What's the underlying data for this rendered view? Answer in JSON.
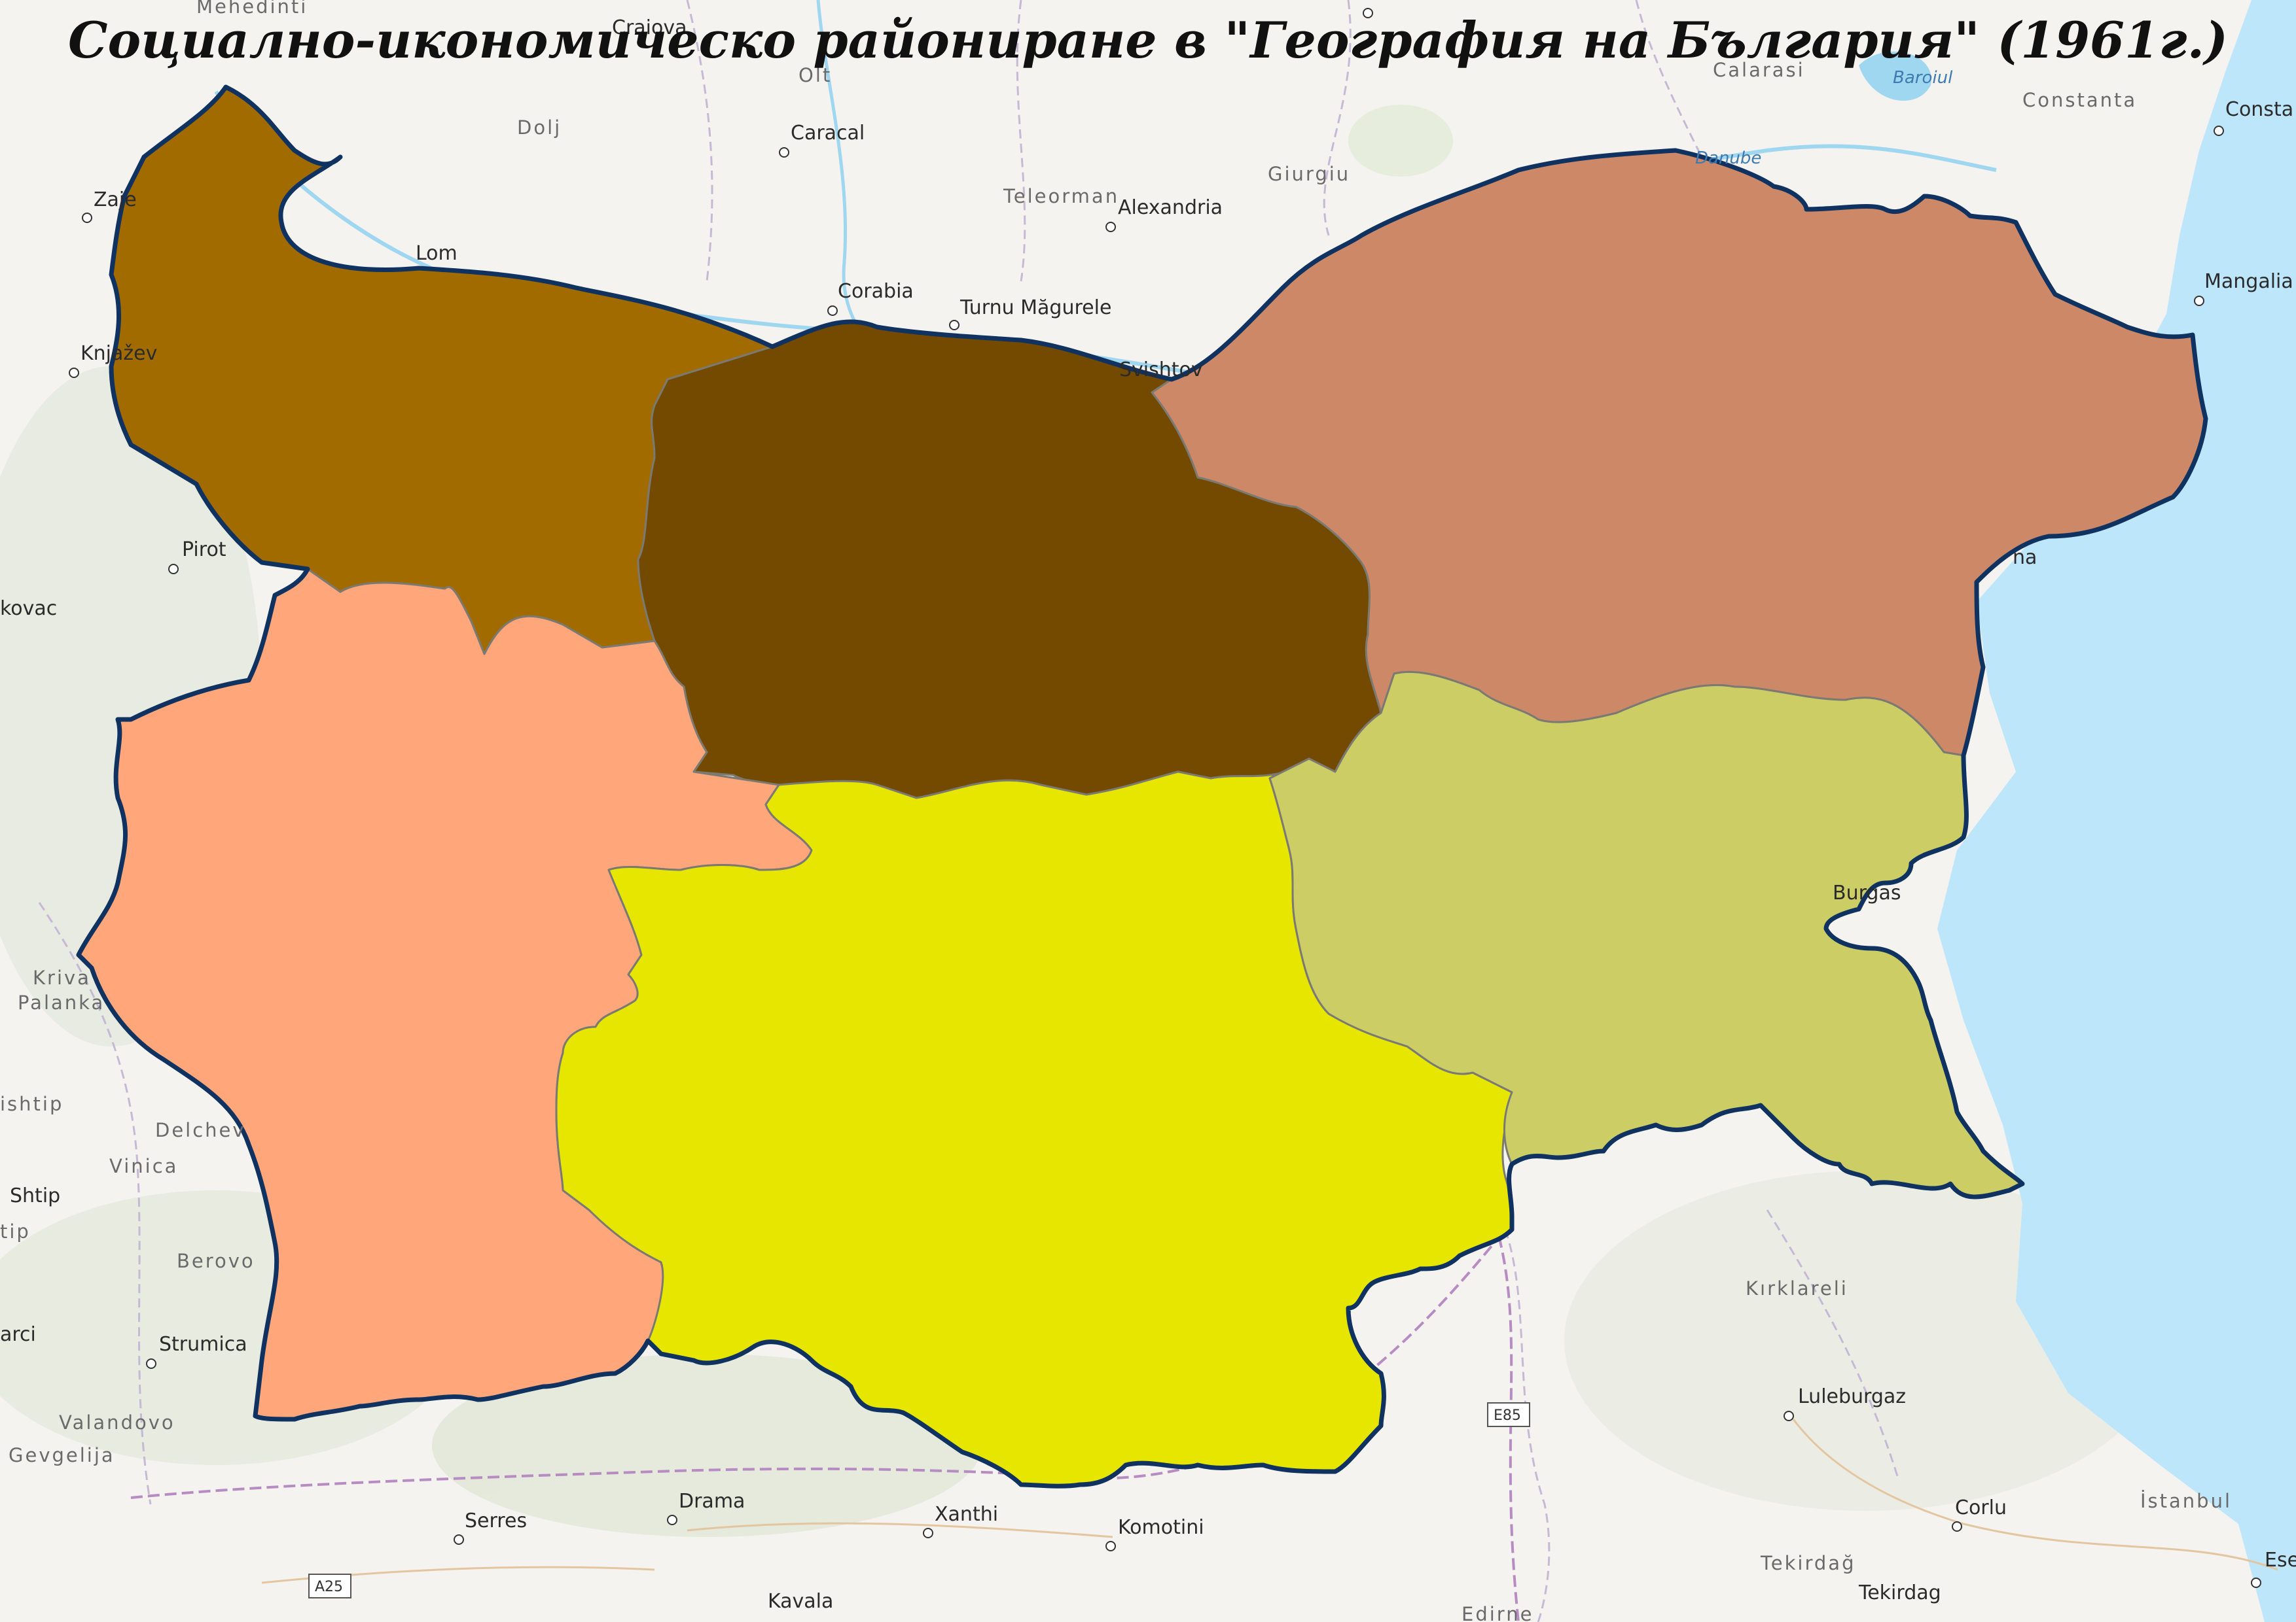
{
  "title": "Социално-икономическо райониране в \"География на България\" (1961г.)",
  "map": {
    "land_color": "#f4f3ef",
    "sea_color": "#bde6fb",
    "border_color": "#0f3260",
    "regions": [
      {
        "color": "#a26b00"
      },
      {
        "color": "#744a00"
      },
      {
        "color": "#cc8867"
      },
      {
        "color": "#ffa67a"
      },
      {
        "color": "#e6e600"
      },
      {
        "color": "#cdcd66"
      }
    ],
    "places": {
      "mehedinti": "Mehedinti",
      "craiova": "Craiova",
      "olt": "Olt",
      "dolj": "Dolj",
      "caracal": "Caracal",
      "calarasi": "Calarasi",
      "baroiul": "Baroiul",
      "constanta_region": "Constanta",
      "constanta": "Consta",
      "teleorman": "Teleorman",
      "alexandria": "Alexandria",
      "giurgiu": "Giurgiu",
      "zajecar": "Zaje",
      "lom": "Lom",
      "corabia": "Corabia",
      "turnu_magurele": "Turnu Măgurele",
      "svishtov": "Svishtov",
      "mangalia": "Mangalia",
      "knjazevac": "Knjažev",
      "pirot": "Pirot",
      "babusnica": "kovac",
      "varna": "na",
      "burgas": "Burgas",
      "kriva_palanka": "Kriva\nPalanka",
      "stip_region": "ishtip",
      "delchevo": "Delchev",
      "vinica": "Vinica",
      "shtip": "Shtip",
      "tip": "tip",
      "berovo": "Berovo",
      "marci": "arci",
      "strumica": "Strumica",
      "valandovo": "Valandovo",
      "gevgelija": "Gevgelija",
      "kirklareli": "Kırklareli",
      "luleburgaz": "Luleburgaz",
      "e85": "E85",
      "serres": "Serres",
      "drama": "Drama",
      "xanthi": "Xanthi",
      "komotini": "Komotini",
      "corlu": "Corlu",
      "istanbul": "İstanbul",
      "tekirdag_region": "Tekirdağ",
      "tekirdag": "Tekirdag",
      "a25": "A25",
      "kavala": "Kavala",
      "edirne": "Edirne",
      "danube": "Danube",
      "ese": "Ese"
    }
  }
}
